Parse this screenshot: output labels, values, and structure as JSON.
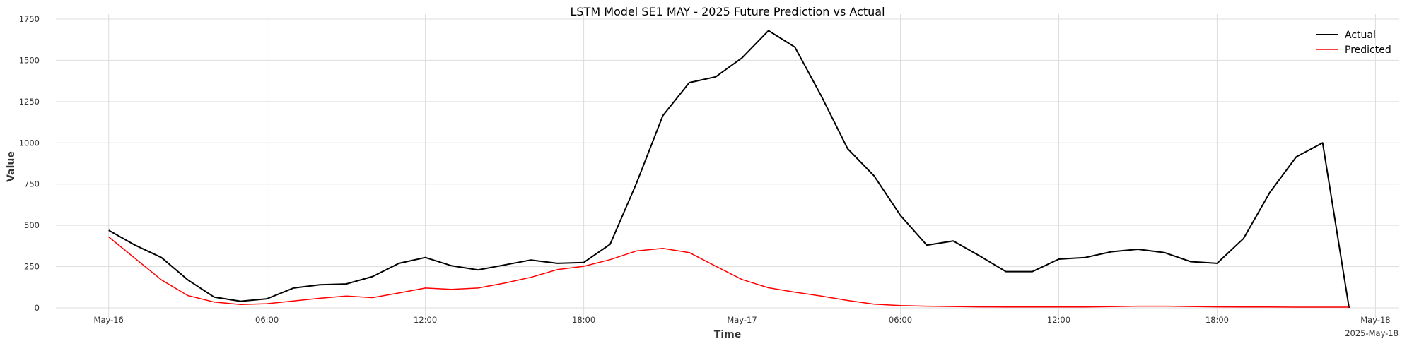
{
  "chart_data": {
    "type": "line",
    "title": "LSTM Model SE1 MAY - 2025 Future Prediction vs Actual",
    "xlabel": "Time",
    "ylabel": "Value",
    "x_start": "2025-05-16 00:00",
    "x_step_hours": 1,
    "xlim_hours": [
      -2,
      48.9
    ],
    "ylim": [
      -60,
      1780
    ],
    "x_ticks": [
      {
        "hour": 0,
        "label": "May-16"
      },
      {
        "hour": 6,
        "label": "06:00"
      },
      {
        "hour": 12,
        "label": "12:00"
      },
      {
        "hour": 18,
        "label": "18:00"
      },
      {
        "hour": 24,
        "label": "May-17"
      },
      {
        "hour": 30,
        "label": "06:00"
      },
      {
        "hour": 36,
        "label": "12:00"
      },
      {
        "hour": 42,
        "label": "18:00"
      },
      {
        "hour": 48,
        "label": "May-18"
      }
    ],
    "x_offset_label": "2025-May-18",
    "y_ticks": [
      0,
      250,
      500,
      750,
      1000,
      1250,
      1500,
      1750
    ],
    "grid": true,
    "legend_position": "top-right",
    "series": [
      {
        "name": "Actual",
        "color": "#000000",
        "values": [
          470,
          380,
          305,
          170,
          65,
          40,
          55,
          120,
          140,
          145,
          190,
          270,
          305,
          255,
          230,
          260,
          290,
          270,
          275,
          385,
          755,
          1165,
          1365,
          1400,
          1515,
          1680,
          1580,
          1285,
          965,
          800,
          560,
          380,
          405,
          315,
          220,
          220,
          295,
          305,
          340,
          355,
          335,
          280,
          270,
          420,
          700,
          915,
          1000,
          0
        ]
      },
      {
        "name": "Predicted",
        "color": "#ff0000",
        "values": [
          430,
          300,
          170,
          75,
          35,
          20,
          25,
          42,
          58,
          72,
          62,
          90,
          120,
          112,
          120,
          150,
          185,
          232,
          252,
          292,
          345,
          360,
          335,
          253,
          172,
          122,
          95,
          72,
          45,
          22,
          14,
          10,
          8,
          6,
          5,
          5,
          5,
          5,
          7,
          10,
          10,
          8,
          6,
          5,
          5,
          4,
          4,
          4
        ]
      }
    ]
  }
}
